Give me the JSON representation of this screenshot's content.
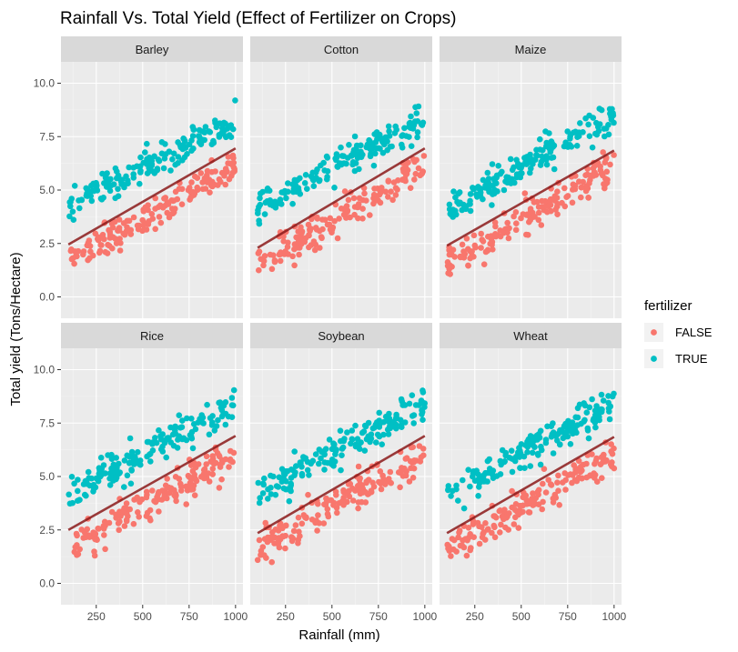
{
  "chart_data": {
    "type": "scatter",
    "title": "Rainfall Vs. Total Yield (Effect of Fertilizer on Crops)",
    "xlabel": "Rainfall (mm)",
    "ylabel": "Total yield (Tons/Hectare)",
    "xlim": [
      60,
      1040
    ],
    "ylim": [
      -1.0,
      11.0
    ],
    "x_ticks": [
      250,
      500,
      750,
      1000
    ],
    "x_tick_labels": [
      "250",
      "500",
      "750",
      "1000"
    ],
    "y_ticks": [
      0,
      2.5,
      5,
      7.5,
      10
    ],
    "y_tick_labels": [
      "0.0",
      "2.5",
      "5.0",
      "7.5",
      "10.0"
    ],
    "grid": true,
    "facet": "crop",
    "panels": [
      {
        "name": "Barley",
        "trend": {
          "x": [
            100,
            1000
          ],
          "y": [
            2.45,
            6.95
          ]
        }
      },
      {
        "name": "Cotton",
        "trend": {
          "x": [
            100,
            1000
          ],
          "y": [
            2.3,
            6.95
          ]
        }
      },
      {
        "name": "Maize",
        "trend": {
          "x": [
            100,
            1000
          ],
          "y": [
            2.4,
            6.85
          ]
        }
      },
      {
        "name": "Rice",
        "trend": {
          "x": [
            100,
            1000
          ],
          "y": [
            2.5,
            6.9
          ]
        }
      },
      {
        "name": "Soybean",
        "trend": {
          "x": [
            100,
            1000
          ],
          "y": [
            2.35,
            6.9
          ]
        }
      },
      {
        "name": "Wheat",
        "trend": {
          "x": [
            100,
            1000
          ],
          "y": [
            2.35,
            6.85
          ]
        }
      }
    ],
    "series": [
      {
        "name": "FALSE",
        "color": "#F8766D",
        "approx_relation": {
          "intercept": 1.1,
          "slope_per_mm": 0.005,
          "spread": 1.1
        }
      },
      {
        "name": "TRUE",
        "color": "#00BFC4",
        "approx_relation": {
          "intercept": 3.7,
          "slope_per_mm": 0.0047,
          "spread": 1.0
        }
      }
    ],
    "trend_color": "#8B1A1A",
    "legend": {
      "title": "fertilizer",
      "position": "right",
      "entries": [
        "FALSE",
        "TRUE"
      ]
    }
  }
}
